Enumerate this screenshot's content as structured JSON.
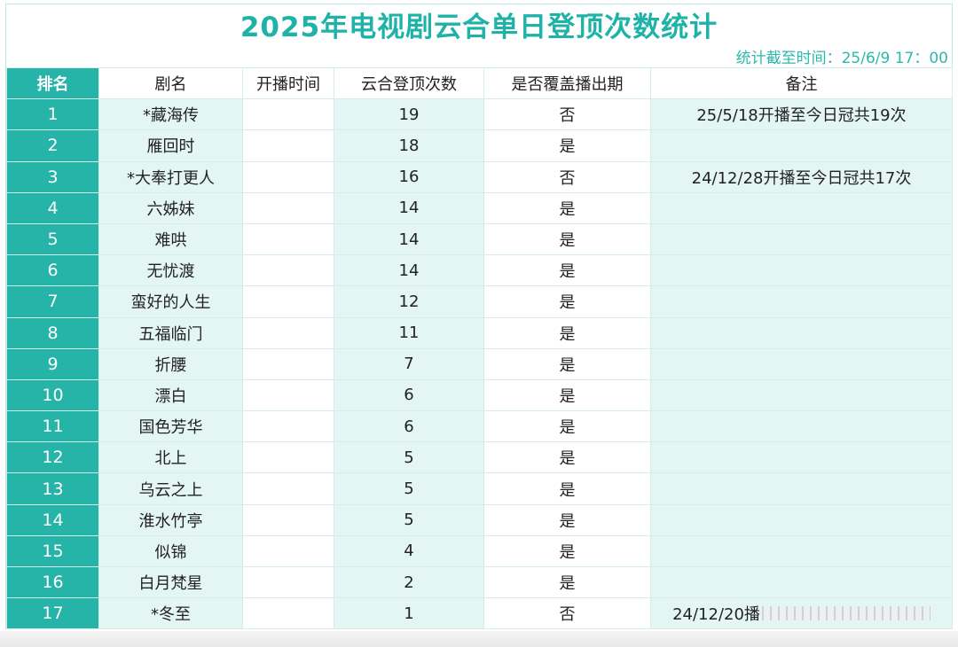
{
  "title": "2025年电视剧云合单日登顶次数统计",
  "stat_time": "统计截至时间：25/6/9 17：00",
  "headers": {
    "rank": "排名",
    "name": "剧名",
    "start": "开播时间",
    "count": "云合登顶次数",
    "cover": "是否覆盖播出期",
    "note": "备注"
  },
  "rows": [
    {
      "rank": "1",
      "name": "*藏海传",
      "start": "",
      "count": "19",
      "cover": "否",
      "note": "25/5/18开播至今日冠共19次"
    },
    {
      "rank": "2",
      "name": "雁回时",
      "start": "",
      "count": "18",
      "cover": "是",
      "note": ""
    },
    {
      "rank": "3",
      "name": "*大奉打更人",
      "start": "",
      "count": "16",
      "cover": "否",
      "note": "24/12/28开播至今日冠共17次"
    },
    {
      "rank": "4",
      "name": "六姊妹",
      "start": "",
      "count": "14",
      "cover": "是",
      "note": ""
    },
    {
      "rank": "5",
      "name": "难哄",
      "start": "",
      "count": "14",
      "cover": "是",
      "note": ""
    },
    {
      "rank": "6",
      "name": "无忧渡",
      "start": "",
      "count": "14",
      "cover": "是",
      "note": ""
    },
    {
      "rank": "7",
      "name": "蛮好的人生",
      "start": "",
      "count": "12",
      "cover": "是",
      "note": ""
    },
    {
      "rank": "8",
      "name": "五福临门",
      "start": "",
      "count": "11",
      "cover": "是",
      "note": ""
    },
    {
      "rank": "9",
      "name": "折腰",
      "start": "",
      "count": "7",
      "cover": "是",
      "note": ""
    },
    {
      "rank": "10",
      "name": "漂白",
      "start": "",
      "count": "6",
      "cover": "是",
      "note": ""
    },
    {
      "rank": "11",
      "name": "国色芳华",
      "start": "",
      "count": "6",
      "cover": "是",
      "note": ""
    },
    {
      "rank": "12",
      "name": "北上",
      "start": "",
      "count": "5",
      "cover": "是",
      "note": ""
    },
    {
      "rank": "13",
      "name": "乌云之上",
      "start": "",
      "count": "5",
      "cover": "是",
      "note": ""
    },
    {
      "rank": "14",
      "name": "淮水竹亭",
      "start": "",
      "count": "5",
      "cover": "是",
      "note": ""
    },
    {
      "rank": "15",
      "name": "似锦",
      "start": "",
      "count": "4",
      "cover": "是",
      "note": ""
    },
    {
      "rank": "16",
      "name": "白月梵星",
      "start": "",
      "count": "2",
      "cover": "是",
      "note": ""
    },
    {
      "rank": "17",
      "name": "*冬至",
      "start": "",
      "count": "1",
      "cover": "否",
      "note": "24/12/20播"
    }
  ],
  "colors": {
    "accent": "#26b3a8",
    "stripe": "#e3f6f4",
    "title": "#1fb3a8"
  }
}
